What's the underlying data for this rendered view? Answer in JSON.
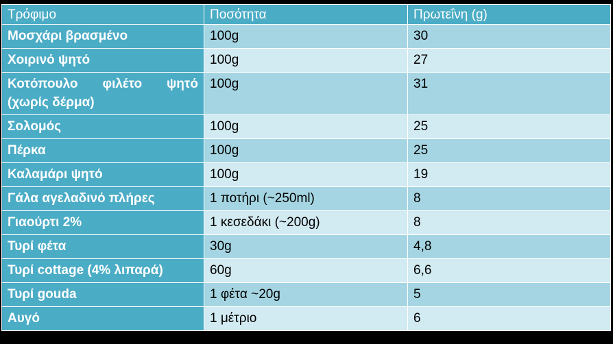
{
  "table": {
    "headers": [
      "Τρόφιμο",
      "Ποσότητα",
      "Πρωτεΐνη (g)"
    ],
    "rows": [
      {
        "food": "Μοσχάρι βρασμένο",
        "quantity": "100g",
        "protein": "30"
      },
      {
        "food": "Χοιρινό ψητό",
        "quantity": "100g",
        "protein": "27"
      },
      {
        "food": "Κοτόπουλο φιλέτο ψητό (χωρίς δέρμα)",
        "quantity": "100g",
        "protein": "31"
      },
      {
        "food": "Σολομός",
        "quantity": "100g",
        "protein": "25"
      },
      {
        "food": "Πέρκα",
        "quantity": "100g",
        "protein": "25"
      },
      {
        "food": "Καλαμάρι ψητό",
        "quantity": "100g",
        "protein": "19"
      },
      {
        "food": "Γάλα αγελαδινό πλήρες",
        "quantity": "1 ποτήρι (~250ml)",
        "protein": "8"
      },
      {
        "food": "Γιαούρτι 2%",
        "quantity": "1 κεσεδάκι (~200g)",
        "protein": "8"
      },
      {
        "food": "Τυρί φέτα",
        "quantity": "30g",
        "protein": "4,8"
      },
      {
        "food": "Τυρί cottage (4% λιπαρά)",
        "quantity": "60g",
        "protein": "6,6"
      },
      {
        "food": "Τυρί gouda",
        "quantity": "1 φέτα ~20g",
        "protein": "5"
      },
      {
        "food": "Αυγό",
        "quantity": "1 μέτριο",
        "protein": "6"
      }
    ]
  },
  "colors": {
    "header_bg": "#4bacc6",
    "row_odd_bg": "#a5d5e2",
    "row_even_bg": "#d2eaf1",
    "page_bg": "#000000"
  }
}
